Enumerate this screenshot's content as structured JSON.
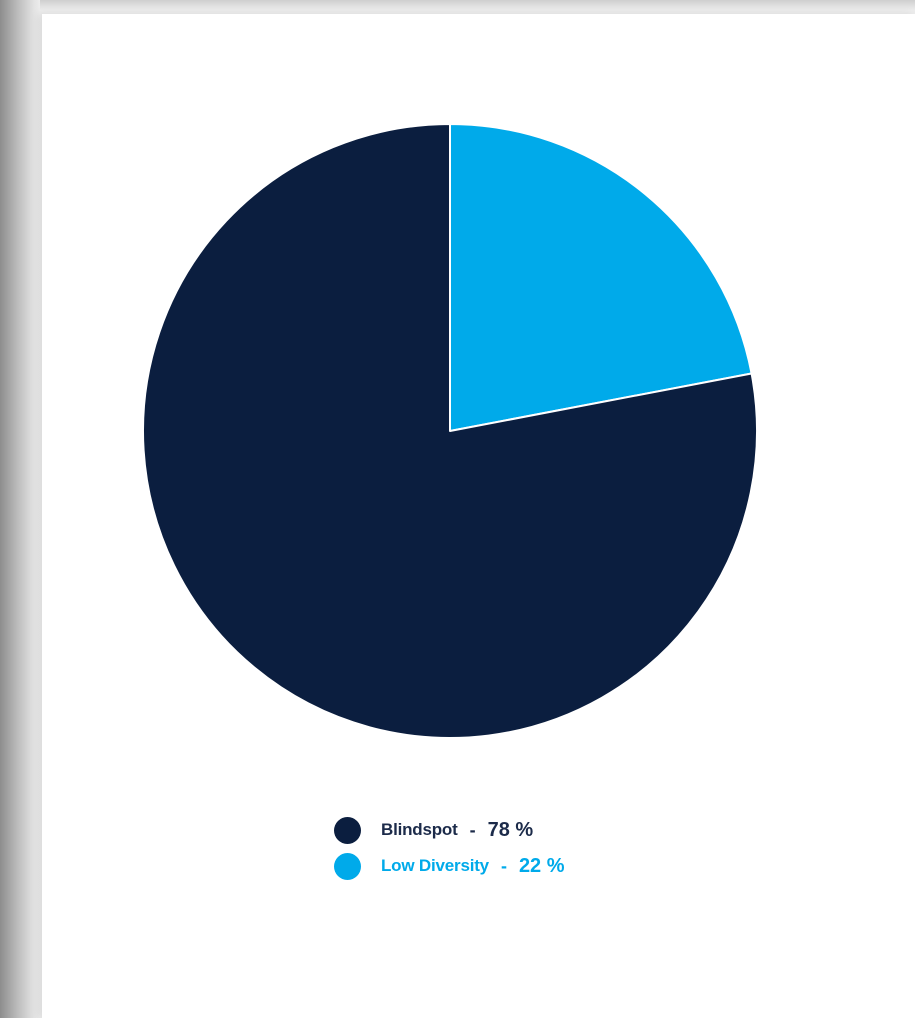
{
  "chart_data": {
    "type": "pie",
    "title": "",
    "slices": [
      {
        "label": "Blindspot",
        "value": 78,
        "display": "78 %",
        "color": "#0b1e3f"
      },
      {
        "label": "Low Diversity",
        "value": 22,
        "display": "22 %",
        "color": "#00aaea"
      }
    ],
    "legend_position": "bottom-center",
    "legend_separator": "-",
    "start_slice": "Low Diversity"
  }
}
